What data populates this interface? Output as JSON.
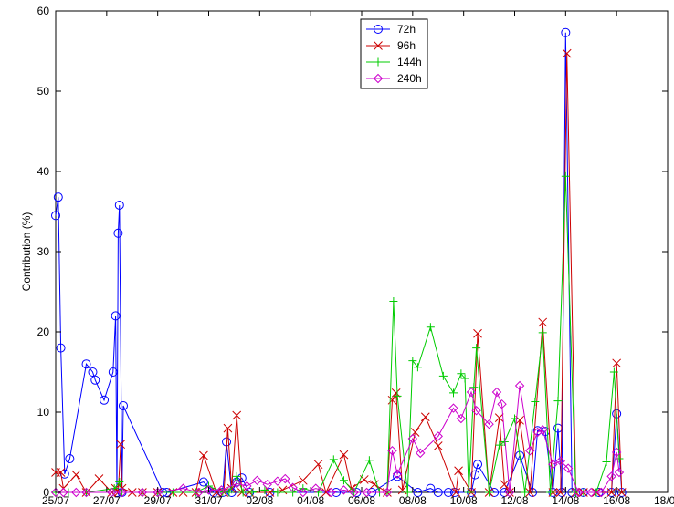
{
  "chart_data": {
    "type": "line",
    "title": "",
    "xlabel": "",
    "ylabel": "Contribution (%)",
    "xlim": [
      "25/07",
      "18/08"
    ],
    "ylim": [
      0,
      60
    ],
    "yticks": [
      0,
      10,
      20,
      30,
      40,
      50,
      60
    ],
    "xtick_labels": [
      "25/07",
      "27/07",
      "29/07",
      "31/07",
      "02/08",
      "04/08",
      "06/08",
      "08/08",
      "10/08",
      "12/08",
      "14/08",
      "16/08",
      "18/08"
    ],
    "grid": false,
    "legend_position": "top-center",
    "series": [
      {
        "name": "72h",
        "color": "#0000ff",
        "marker": "circle",
        "points": [
          [
            0.0,
            34.5
          ],
          [
            0.1,
            36.8
          ],
          [
            0.2,
            18.0
          ],
          [
            0.35,
            2.3
          ],
          [
            0.55,
            4.2
          ],
          [
            1.2,
            16.0
          ],
          [
            1.45,
            15.0
          ],
          [
            1.55,
            14.0
          ],
          [
            1.9,
            11.5
          ],
          [
            2.25,
            15.0
          ],
          [
            2.35,
            22.0
          ],
          [
            2.4,
            0.0
          ],
          [
            2.45,
            32.3
          ],
          [
            2.5,
            35.8
          ],
          [
            2.6,
            0.0
          ],
          [
            2.65,
            10.8
          ],
          [
            4.2,
            0.0
          ],
          [
            4.35,
            0.0
          ],
          [
            5.8,
            1.3
          ],
          [
            6.2,
            0.0
          ],
          [
            6.55,
            0.0
          ],
          [
            6.7,
            6.3
          ],
          [
            6.9,
            0.0
          ],
          [
            7.1,
            1.3
          ],
          [
            7.3,
            1.8
          ],
          [
            7.6,
            0.0
          ],
          [
            8.4,
            0.0
          ],
          [
            11.0,
            0.0
          ],
          [
            11.8,
            0.0
          ],
          [
            12.4,
            0.0
          ],
          [
            13.4,
            2.0
          ],
          [
            14.2,
            0.0
          ],
          [
            14.7,
            0.5
          ],
          [
            15.0,
            0.0
          ],
          [
            15.4,
            0.0
          ],
          [
            15.65,
            0.0
          ],
          [
            16.3,
            0.0
          ],
          [
            16.45,
            2.2
          ],
          [
            16.55,
            3.5
          ],
          [
            17.2,
            0.0
          ],
          [
            17.6,
            0.0
          ],
          [
            18.2,
            4.6
          ],
          [
            18.7,
            0.0
          ],
          [
            18.9,
            7.7
          ],
          [
            19.2,
            7.6
          ],
          [
            19.5,
            0.0
          ],
          [
            19.7,
            8.0
          ],
          [
            19.85,
            0.0
          ],
          [
            20.0,
            57.3
          ],
          [
            20.25,
            0.0
          ],
          [
            20.7,
            0.0
          ],
          [
            21.3,
            0.0
          ],
          [
            21.8,
            0.0
          ],
          [
            22.0,
            9.8
          ],
          [
            22.2,
            0.0
          ]
        ]
      },
      {
        "name": "96h",
        "color": "#cc0000",
        "marker": "x",
        "points": [
          [
            0.0,
            2.5
          ],
          [
            0.2,
            2.5
          ],
          [
            0.3,
            0.5
          ],
          [
            0.8,
            2.2
          ],
          [
            1.2,
            0.0
          ],
          [
            1.7,
            1.7
          ],
          [
            2.2,
            0.0
          ],
          [
            2.35,
            0.5
          ],
          [
            2.45,
            0.0
          ],
          [
            2.55,
            6.0
          ],
          [
            2.6,
            0.5
          ],
          [
            3.0,
            0.0
          ],
          [
            3.4,
            0.0
          ],
          [
            4.0,
            0.0
          ],
          [
            4.6,
            0.0
          ],
          [
            5.0,
            0.0
          ],
          [
            5.5,
            0.0
          ],
          [
            5.8,
            4.6
          ],
          [
            6.3,
            0.0
          ],
          [
            6.6,
            0.0
          ],
          [
            6.75,
            8.0
          ],
          [
            6.9,
            0.5
          ],
          [
            7.1,
            9.6
          ],
          [
            7.3,
            0.0
          ],
          [
            7.6,
            0.0
          ],
          [
            8.4,
            0.0
          ],
          [
            8.9,
            0.3
          ],
          [
            9.7,
            1.5
          ],
          [
            10.3,
            3.5
          ],
          [
            10.6,
            0.0
          ],
          [
            11.3,
            4.7
          ],
          [
            11.6,
            0.5
          ],
          [
            12.1,
            1.6
          ],
          [
            12.5,
            1.0
          ],
          [
            13.0,
            0.0
          ],
          [
            13.2,
            11.5
          ],
          [
            13.35,
            12.4
          ],
          [
            13.6,
            0.3
          ],
          [
            14.1,
            7.5
          ],
          [
            14.5,
            9.4
          ],
          [
            15.0,
            5.8
          ],
          [
            15.7,
            0.0
          ],
          [
            15.8,
            2.7
          ],
          [
            16.3,
            0.0
          ],
          [
            16.55,
            19.8
          ],
          [
            17.0,
            0.0
          ],
          [
            17.4,
            9.3
          ],
          [
            17.6,
            1.0
          ],
          [
            17.8,
            0.0
          ],
          [
            18.2,
            9.0
          ],
          [
            18.6,
            0.0
          ],
          [
            19.1,
            21.2
          ],
          [
            19.5,
            0.0
          ],
          [
            19.8,
            0.0
          ],
          [
            20.05,
            54.7
          ],
          [
            20.4,
            0.0
          ],
          [
            20.7,
            0.0
          ],
          [
            21.2,
            0.0
          ],
          [
            21.8,
            0.0
          ],
          [
            22.0,
            16.1
          ],
          [
            22.2,
            0.0
          ]
        ]
      },
      {
        "name": "144h",
        "color": "#00cc00",
        "marker": "plus",
        "points": [
          [
            0.0,
            0.0
          ],
          [
            0.5,
            0.0
          ],
          [
            1.2,
            0.0
          ],
          [
            2.3,
            0.5
          ],
          [
            2.5,
            1.3
          ],
          [
            2.6,
            0.0
          ],
          [
            3.4,
            0.0
          ],
          [
            4.0,
            0.0
          ],
          [
            4.6,
            0.0
          ],
          [
            5.5,
            0.0
          ],
          [
            6.0,
            0.8
          ],
          [
            6.55,
            0.0
          ],
          [
            6.8,
            0.0
          ],
          [
            7.1,
            2.0
          ],
          [
            7.35,
            0.0
          ],
          [
            7.7,
            0.0
          ],
          [
            8.2,
            0.3
          ],
          [
            8.7,
            0.0
          ],
          [
            9.3,
            0.0
          ],
          [
            9.7,
            0.5
          ],
          [
            10.3,
            0.0
          ],
          [
            10.9,
            4.1
          ],
          [
            11.3,
            1.5
          ],
          [
            11.7,
            0.0
          ],
          [
            12.3,
            4.0
          ],
          [
            12.7,
            0.0
          ],
          [
            13.0,
            0.0
          ],
          [
            13.25,
            23.8
          ],
          [
            13.4,
            12.0
          ],
          [
            13.8,
            0.0
          ],
          [
            14.0,
            16.4
          ],
          [
            14.2,
            15.6
          ],
          [
            14.7,
            20.6
          ],
          [
            15.2,
            14.5
          ],
          [
            15.6,
            12.4
          ],
          [
            15.9,
            14.8
          ],
          [
            16.05,
            14.2
          ],
          [
            16.2,
            0.0
          ],
          [
            16.4,
            13.1
          ],
          [
            16.5,
            18.0
          ],
          [
            17.0,
            0.0
          ],
          [
            17.4,
            5.9
          ],
          [
            17.6,
            6.3
          ],
          [
            18.0,
            9.2
          ],
          [
            18.4,
            0.0
          ],
          [
            18.8,
            11.3
          ],
          [
            19.1,
            19.9
          ],
          [
            19.4,
            0.0
          ],
          [
            19.7,
            11.4
          ],
          [
            20.0,
            39.4
          ],
          [
            20.4,
            0.0
          ],
          [
            20.7,
            0.0
          ],
          [
            21.2,
            0.0
          ],
          [
            21.6,
            3.8
          ],
          [
            21.9,
            15.0
          ],
          [
            22.1,
            4.2
          ]
        ]
      },
      {
        "name": "240h",
        "color": "#cc00cc",
        "marker": "diamond",
        "points": [
          [
            0.0,
            0.0
          ],
          [
            0.3,
            0.0
          ],
          [
            0.8,
            0.0
          ],
          [
            1.2,
            0.0
          ],
          [
            2.2,
            0.0
          ],
          [
            2.6,
            0.0
          ],
          [
            3.4,
            0.0
          ],
          [
            4.0,
            0.0
          ],
          [
            5.0,
            0.5
          ],
          [
            5.6,
            0.0
          ],
          [
            6.0,
            0.3
          ],
          [
            6.5,
            0.3
          ],
          [
            7.1,
            1.1
          ],
          [
            7.5,
            0.8
          ],
          [
            7.9,
            1.5
          ],
          [
            8.3,
            1.0
          ],
          [
            8.7,
            1.4
          ],
          [
            9.0,
            1.7
          ],
          [
            9.3,
            0.6
          ],
          [
            9.7,
            0.0
          ],
          [
            10.2,
            0.5
          ],
          [
            10.8,
            0.0
          ],
          [
            11.3,
            0.3
          ],
          [
            11.7,
            0.0
          ],
          [
            12.2,
            0.0
          ],
          [
            13.0,
            0.0
          ],
          [
            13.2,
            5.2
          ],
          [
            13.4,
            2.3
          ],
          [
            14.0,
            6.7
          ],
          [
            14.3,
            4.9
          ],
          [
            15.0,
            7.0
          ],
          [
            15.6,
            10.5
          ],
          [
            15.9,
            9.2
          ],
          [
            16.3,
            12.5
          ],
          [
            16.5,
            10.2
          ],
          [
            17.0,
            8.5
          ],
          [
            17.3,
            12.5
          ],
          [
            17.5,
            11.0
          ],
          [
            17.8,
            0.0
          ],
          [
            18.2,
            13.3
          ],
          [
            18.6,
            5.2
          ],
          [
            18.9,
            7.5
          ],
          [
            19.1,
            7.8
          ],
          [
            19.5,
            3.5
          ],
          [
            19.8,
            3.9
          ],
          [
            20.1,
            3.0
          ],
          [
            20.5,
            0.0
          ],
          [
            21.0,
            0.0
          ],
          [
            21.4,
            0.0
          ],
          [
            21.8,
            2.0
          ],
          [
            22.0,
            5.0
          ],
          [
            22.1,
            2.5
          ]
        ]
      }
    ]
  }
}
